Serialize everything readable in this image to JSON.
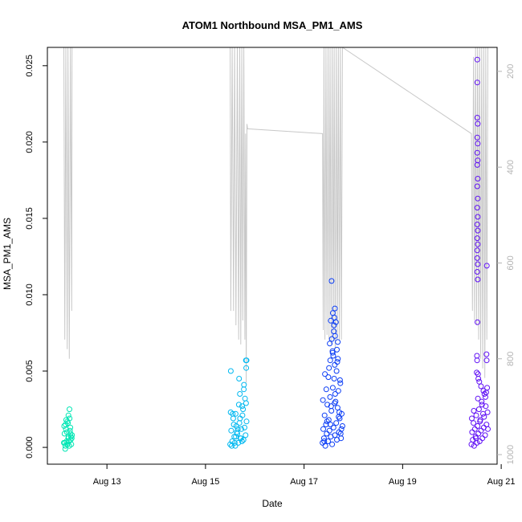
{
  "chart_data": {
    "type": "scatter",
    "title": "ATOM1 Northbound MSA_PM1_AMS",
    "xlabel": "Date",
    "ylabel": "MSA_PM1_AMS",
    "x_axis": {
      "type": "date",
      "range": [
        "2017-08-11T19:00",
        "2017-08-20T22:00"
      ],
      "ticks": [
        "Aug 13",
        "Aug 15",
        "Aug 17",
        "Aug 19",
        "Aug 21"
      ]
    },
    "y_axis": {
      "range": [
        -0.0011,
        0.0262
      ],
      "ticks": [
        0.0,
        0.005,
        0.01,
        0.015,
        0.02,
        0.025
      ],
      "tick_labels": [
        "0.000",
        "0.005",
        "0.010",
        "0.015",
        "0.020",
        "0.025"
      ]
    },
    "y2_axis": {
      "note": "secondary reversed axis (unlabeled)",
      "range": [
        1020,
        150
      ],
      "reversed": true,
      "ticks": [
        200,
        400,
        600,
        800,
        1000
      ],
      "tick_labels": [
        "200",
        "400",
        "600",
        "800",
        "1000"
      ],
      "line_color": "#c8c8c8"
    },
    "secondary_line": {
      "color": "#c8c8c8",
      "points": [
        [
          "2017-08-12T03:00",
          150
        ],
        [
          "2017-08-12T03:30",
          760
        ],
        [
          "2017-08-12T04:00",
          150
        ],
        [
          "2017-08-12T04:40",
          780
        ],
        [
          "2017-08-12T05:00",
          150
        ],
        [
          "2017-08-12T05:40",
          800
        ],
        [
          "2017-08-12T06:10",
          150
        ],
        [
          "2017-08-12T06:50",
          700
        ],
        [
          "2017-08-12T07:00",
          150
        ],
        [
          "2017-08-15T12:00",
          150
        ],
        [
          "2017-08-15T12:20",
          700
        ],
        [
          "2017-08-15T13:00",
          150
        ],
        [
          "2017-08-15T13:40",
          700
        ],
        [
          "2017-08-15T14:10",
          150
        ],
        [
          "2017-08-15T14:50",
          730
        ],
        [
          "2017-08-15T15:30",
          150
        ],
        [
          "2017-08-15T16:10",
          760
        ],
        [
          "2017-08-15T16:40",
          150
        ],
        [
          "2017-08-15T17:10",
          770
        ],
        [
          "2017-08-15T17:40",
          150
        ],
        [
          "2017-08-15T18:10",
          720
        ],
        [
          "2017-08-15T18:40",
          150
        ],
        [
          "2017-08-15T19:10",
          760
        ],
        [
          "2017-08-15T19:30",
          330
        ],
        [
          "2017-08-15T19:50",
          850
        ],
        [
          "2017-08-15T20:10",
          310
        ],
        [
          "2017-08-15T20:30",
          320
        ],
        [
          "2017-08-17T09:00",
          330
        ],
        [
          "2017-08-17T09:20",
          740
        ],
        [
          "2017-08-17T09:40",
          150
        ],
        [
          "2017-08-17T10:10",
          760
        ],
        [
          "2017-08-17T10:40",
          150
        ],
        [
          "2017-08-17T11:10",
          750
        ],
        [
          "2017-08-17T11:40",
          150
        ],
        [
          "2017-08-17T12:10",
          760
        ],
        [
          "2017-08-17T12:40",
          150
        ],
        [
          "2017-08-17T13:10",
          770
        ],
        [
          "2017-08-17T13:40",
          150
        ],
        [
          "2017-08-17T14:10",
          760
        ],
        [
          "2017-08-17T14:40",
          150
        ],
        [
          "2017-08-17T15:10",
          780
        ],
        [
          "2017-08-17T15:40",
          150
        ],
        [
          "2017-08-17T16:10",
          760
        ],
        [
          "2017-08-17T16:40",
          150
        ],
        [
          "2017-08-17T17:10",
          760
        ],
        [
          "2017-08-17T17:40",
          150
        ],
        [
          "2017-08-17T18:10",
          760
        ],
        [
          "2017-08-17T18:40",
          150
        ],
        [
          "2017-08-20T09:30",
          330
        ],
        [
          "2017-08-20T10:00",
          700
        ],
        [
          "2017-08-20T10:30",
          170
        ],
        [
          "2017-08-20T11:00",
          720
        ],
        [
          "2017-08-20T11:30",
          150
        ],
        [
          "2017-08-20T12:00",
          730
        ],
        [
          "2017-08-20T12:30",
          150
        ],
        [
          "2017-08-20T13:00",
          760
        ],
        [
          "2017-08-20T13:30",
          150
        ],
        [
          "2017-08-20T14:00",
          800
        ],
        [
          "2017-08-20T14:30",
          150
        ],
        [
          "2017-08-20T15:00",
          820
        ],
        [
          "2017-08-20T15:30",
          150
        ],
        [
          "2017-08-20T16:00",
          840
        ],
        [
          "2017-08-20T16:30",
          150
        ],
        [
          "2017-08-20T17:00",
          760
        ],
        [
          "2017-08-20T17:30",
          150
        ]
      ]
    },
    "series": [
      {
        "color": "#00e6b4",
        "x": [
          "2017-08-12T03:00",
          "2017-08-12T03:20",
          "2017-08-12T03:40",
          "2017-08-12T04:00",
          "2017-08-12T04:20",
          "2017-08-12T04:40",
          "2017-08-12T05:00",
          "2017-08-12T05:20",
          "2017-08-12T05:40",
          "2017-08-12T06:00",
          "2017-08-12T06:20",
          "2017-08-12T06:40",
          "2017-08-12T07:00",
          "2017-08-12T03:10",
          "2017-08-12T04:10",
          "2017-08-12T05:10",
          "2017-08-12T06:10",
          "2017-08-12T03:30",
          "2017-08-12T04:30",
          "2017-08-12T05:30",
          "2017-08-12T06:30",
          "2017-08-12T03:50",
          "2017-08-12T04:50",
          "2017-08-12T05:50",
          "2017-08-12T06:50",
          "2017-08-12T05:15",
          "2017-08-12T05:45",
          "2017-08-12T04:45",
          "2017-08-12T06:15",
          "2017-08-12T03:45"
        ],
        "y": [
          0.0003,
          0.0009,
          -0.0001,
          0.0012,
          0.0004,
          0.0002,
          0.0016,
          0.0007,
          0.0001,
          0.0011,
          0.0005,
          0.0002,
          0.0008,
          0.0014,
          0.0018,
          0.0006,
          0.0013,
          0.0003,
          0.001,
          0.0004,
          0.0007,
          0.0015,
          0.0002,
          0.0019,
          0.0006,
          0.0021,
          0.0025,
          0.0017,
          0.0009,
          0.0001
        ]
      },
      {
        "color": "#00b8f0",
        "x": [
          "2017-08-15T12:00",
          "2017-08-15T12:30",
          "2017-08-15T13:00",
          "2017-08-15T13:30",
          "2017-08-15T14:00",
          "2017-08-15T14:30",
          "2017-08-15T15:00",
          "2017-08-15T15:30",
          "2017-08-15T16:00",
          "2017-08-15T16:30",
          "2017-08-15T17:00",
          "2017-08-15T17:30",
          "2017-08-15T18:00",
          "2017-08-15T18:30",
          "2017-08-15T19:00",
          "2017-08-15T19:30",
          "2017-08-15T20:00",
          "2017-08-15T12:15",
          "2017-08-15T13:15",
          "2017-08-15T14:15",
          "2017-08-15T15:15",
          "2017-08-15T16:15",
          "2017-08-15T17:15",
          "2017-08-15T18:15",
          "2017-08-15T19:15",
          "2017-08-15T12:45",
          "2017-08-15T13:45",
          "2017-08-15T14:45",
          "2017-08-15T15:45",
          "2017-08-15T16:45",
          "2017-08-15T17:45",
          "2017-08-15T18:45",
          "2017-08-15T19:45",
          "2017-08-15T12:20",
          "2017-08-15T14:40",
          "2017-08-15T16:20",
          "2017-08-15T18:40",
          "2017-08-15T19:50",
          "2017-08-15T20:00",
          "2017-08-15T19:40",
          "2017-08-15T17:50",
          "2017-08-15T16:50"
        ],
        "y": [
          0.0002,
          0.0011,
          0.0004,
          0.0019,
          0.0007,
          0.0001,
          0.0014,
          0.0009,
          0.0003,
          0.0016,
          0.0006,
          0.0012,
          0.0021,
          0.0005,
          0.0013,
          0.0008,
          0.0017,
          0.0023,
          0.0022,
          0.0003,
          0.001,
          0.0028,
          0.0006,
          0.0025,
          0.0032,
          0.0001,
          0.0015,
          0.0007,
          0.0012,
          0.0035,
          0.0004,
          0.0041,
          0.0029,
          0.005,
          0.0022,
          0.0045,
          0.0038,
          0.0052,
          0.0057,
          0.0057,
          0.0027,
          0.0019
        ]
      },
      {
        "color": "#0a3cf5",
        "x": [
          "2017-08-17T09:00",
          "2017-08-17T09:20",
          "2017-08-17T09:40",
          "2017-08-17T10:00",
          "2017-08-17T10:20",
          "2017-08-17T10:40",
          "2017-08-17T11:00",
          "2017-08-17T11:20",
          "2017-08-17T11:40",
          "2017-08-17T12:00",
          "2017-08-17T12:20",
          "2017-08-17T12:40",
          "2017-08-17T13:00",
          "2017-08-17T13:20",
          "2017-08-17T13:40",
          "2017-08-17T14:00",
          "2017-08-17T14:20",
          "2017-08-17T14:40",
          "2017-08-17T15:00",
          "2017-08-17T15:20",
          "2017-08-17T15:40",
          "2017-08-17T16:00",
          "2017-08-17T16:20",
          "2017-08-17T16:40",
          "2017-08-17T17:00",
          "2017-08-17T17:20",
          "2017-08-17T17:40",
          "2017-08-17T18:00",
          "2017-08-17T18:20",
          "2017-08-17T18:40",
          "2017-08-17T09:10",
          "2017-08-17T10:10",
          "2017-08-17T11:10",
          "2017-08-17T12:10",
          "2017-08-17T13:10",
          "2017-08-17T14:10",
          "2017-08-17T15:10",
          "2017-08-17T16:10",
          "2017-08-17T17:10",
          "2017-08-17T18:10",
          "2017-08-17T09:50",
          "2017-08-17T10:50",
          "2017-08-17T11:50",
          "2017-08-17T12:50",
          "2017-08-17T13:50",
          "2017-08-17T14:50",
          "2017-08-17T15:50",
          "2017-08-17T16:50",
          "2017-08-17T17:50",
          "2017-08-17T12:30",
          "2017-08-17T13:30",
          "2017-08-17T14:30",
          "2017-08-17T15:30",
          "2017-08-17T16:30",
          "2017-08-17T17:30",
          "2017-08-17T13:00",
          "2017-08-17T14:00",
          "2017-08-17T15:00",
          "2017-08-17T16:00",
          "2017-08-17T13:25",
          "2017-08-17T14:35",
          "2017-08-17T15:05",
          "2017-08-17T16:25",
          "2017-08-17T12:45",
          "2017-08-17T14:45",
          "2017-08-17T13:55",
          "2017-08-17T14:55"
        ],
        "y": [
          0.0003,
          0.0012,
          0.0006,
          0.0021,
          0.0001,
          0.0015,
          0.0009,
          0.0028,
          0.0004,
          0.0018,
          0.0011,
          0.0033,
          0.0007,
          0.0024,
          0.0002,
          0.0039,
          0.0013,
          0.0045,
          0.0008,
          0.003,
          0.0016,
          0.0005,
          0.0026,
          0.0037,
          0.001,
          0.0019,
          0.0042,
          0.0006,
          0.0022,
          0.0014,
          0.0031,
          0.0048,
          0.0017,
          0.0052,
          0.0027,
          0.006,
          0.0035,
          0.0056,
          0.0023,
          0.0012,
          0.0004,
          0.0038,
          0.0046,
          0.0015,
          0.0063,
          0.0029,
          0.005,
          0.002,
          0.0009,
          0.0068,
          0.0071,
          0.0076,
          0.0082,
          0.0058,
          0.0044,
          0.0083,
          0.0088,
          0.0091,
          0.0064,
          0.0109,
          0.008,
          0.0073,
          0.0069,
          0.0057,
          0.0085,
          0.0062,
          0.0054
        ]
      },
      {
        "color": "#6010f5",
        "x": [
          "2017-08-20T09:30",
          "2017-08-20T09:50",
          "2017-08-20T10:10",
          "2017-08-20T10:30",
          "2017-08-20T10:50",
          "2017-08-20T11:10",
          "2017-08-20T11:30",
          "2017-08-20T11:50",
          "2017-08-20T12:10",
          "2017-08-20T12:30",
          "2017-08-20T12:50",
          "2017-08-20T13:10",
          "2017-08-20T13:30",
          "2017-08-20T13:50",
          "2017-08-20T14:10",
          "2017-08-20T14:30",
          "2017-08-20T14:50",
          "2017-08-20T15:10",
          "2017-08-20T15:30",
          "2017-08-20T15:50",
          "2017-08-20T16:10",
          "2017-08-20T16:30",
          "2017-08-20T16:50",
          "2017-08-20T17:10",
          "2017-08-20T17:30",
          "2017-08-20T09:40",
          "2017-08-20T10:40",
          "2017-08-20T11:40",
          "2017-08-20T12:40",
          "2017-08-20T13:40",
          "2017-08-20T14:40",
          "2017-08-20T15:40",
          "2017-08-20T16:40",
          "2017-08-20T17:20",
          "2017-08-20T12:20",
          "2017-08-20T12:20",
          "2017-08-20T12:20",
          "2017-08-20T12:20",
          "2017-08-20T12:20",
          "2017-08-20T12:20",
          "2017-08-20T12:20",
          "2017-08-20T12:20",
          "2017-08-20T12:20",
          "2017-08-20T12:20",
          "2017-08-20T12:20",
          "2017-08-20T12:20",
          "2017-08-20T12:20",
          "2017-08-20T12:35",
          "2017-08-20T12:35",
          "2017-08-20T12:35",
          "2017-08-20T12:35",
          "2017-08-20T12:35",
          "2017-08-20T12:35",
          "2017-08-20T12:35",
          "2017-08-20T12:35",
          "2017-08-20T12:35",
          "2017-08-20T12:35",
          "2017-08-20T12:10",
          "2017-08-20T12:15",
          "2017-08-20T12:05",
          "2017-08-20T17:00",
          "2017-08-20T16:50",
          "2017-08-20T16:55",
          "2017-08-20T12:45",
          "2017-08-20T13:20",
          "2017-08-20T14:10",
          "2017-08-20T15:20",
          "2017-08-20T16:20",
          "2017-08-20T12:50",
          "2017-08-20T12:25"
        ],
        "y": [
          0.0002,
          0.001,
          0.0005,
          0.0016,
          0.0001,
          0.0012,
          0.0007,
          0.0021,
          0.0003,
          0.0014,
          0.0009,
          0.0025,
          0.0004,
          0.0018,
          0.0011,
          0.003,
          0.0006,
          0.0022,
          0.0013,
          0.0035,
          0.0008,
          0.0027,
          0.0015,
          0.0039,
          0.0012,
          0.0019,
          0.0024,
          0.0006,
          0.0032,
          0.0017,
          0.0028,
          0.002,
          0.0036,
          0.0023,
          0.0254,
          0.0239,
          0.0216,
          0.0203,
          0.0193,
          0.0185,
          0.0171,
          0.0157,
          0.0146,
          0.0137,
          0.0129,
          0.0124,
          0.0115,
          0.0212,
          0.0199,
          0.0188,
          0.0176,
          0.0163,
          0.0151,
          0.0142,
          0.0133,
          0.012,
          0.011,
          0.006,
          0.0057,
          0.0049,
          0.0119,
          0.0061,
          0.0057,
          0.0048,
          0.0043,
          0.004,
          0.0037,
          0.0033,
          0.0045,
          0.0082
        ]
      }
    ]
  }
}
